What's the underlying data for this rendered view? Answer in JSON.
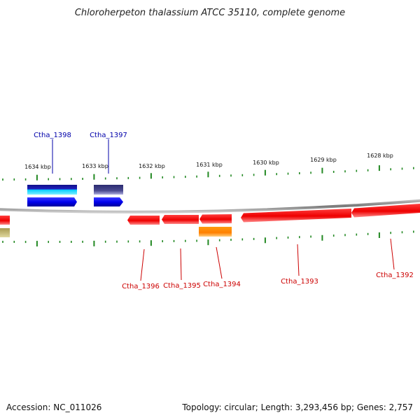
{
  "title": "Chloroherpeton thalassium ATCC 35110, complete genome",
  "footer": {
    "accession": "Accession: NC_011026",
    "summary": "Topology: circular; Length: 3,293,456 bp; Genes: 2,757"
  },
  "colors": {
    "forward_label": "#0000aa",
    "reverse_label": "#cc0000",
    "ticks": "#228822",
    "backbone": "#888888"
  },
  "ticks": {
    "labels": [
      "1634 kbp",
      "1633 kbp",
      "1632 kbp",
      "1631 kbp",
      "1630 kbp",
      "1629 kbp",
      "1628 kbp"
    ]
  },
  "genes": {
    "forward": [
      {
        "id": "Ctha_1398",
        "color": "#0000ee"
      },
      {
        "id": "Ctha_1397",
        "color": "#0000ee"
      }
    ],
    "reverse": [
      {
        "id": "Ctha_1396",
        "color": "#ee0000"
      },
      {
        "id": "Ctha_1395",
        "color": "#ee0000"
      },
      {
        "id": "Ctha_1394",
        "color": "#ee0000"
      },
      {
        "id": "Ctha_1393",
        "color": "#ee0000"
      },
      {
        "id": "Ctha_1392",
        "color": "#ee0000"
      }
    ]
  },
  "features": {
    "forward_band_colors": [
      "#1a1a9e",
      "#00d0ff",
      "#3a3a80"
    ],
    "reverse_band_colors": [
      "#ff8c00",
      "#a89a50"
    ]
  }
}
